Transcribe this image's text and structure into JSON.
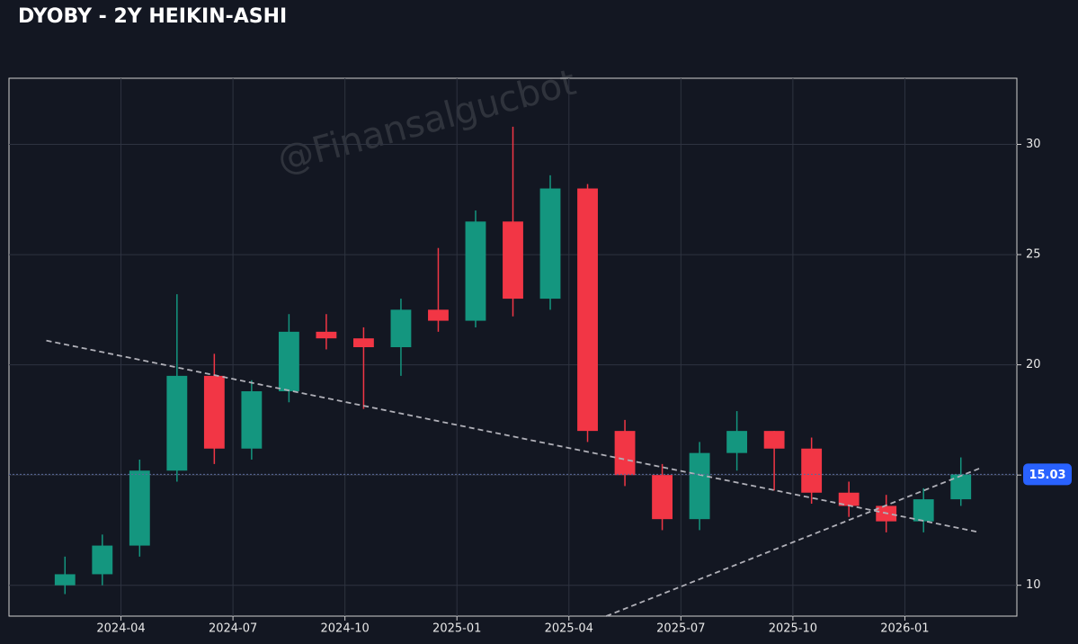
{
  "chart_data": {
    "type": "candlestick",
    "title": "DYOBY - 2Y HEIKIN-ASHI",
    "watermark": "@Finansalgucbot",
    "x": [
      "2024-02",
      "2024-03",
      "2024-04",
      "2024-05",
      "2024-06",
      "2024-07",
      "2024-08",
      "2024-09",
      "2024-10",
      "2024-11",
      "2024-12",
      "2025-01",
      "2025-02",
      "2025-03",
      "2025-04",
      "2025-05",
      "2025-06",
      "2025-07",
      "2025-08",
      "2025-09",
      "2025-10",
      "2025-11",
      "2025-12",
      "2026-01",
      "2026-02"
    ],
    "open": [
      10.0,
      10.5,
      11.8,
      15.2,
      19.5,
      16.2,
      18.8,
      21.5,
      21.2,
      20.8,
      22.5,
      22.0,
      26.5,
      23.0,
      28.0,
      17.0,
      15.0,
      13.0,
      16.0,
      17.0,
      16.2,
      14.2,
      13.6,
      12.9,
      13.9
    ],
    "high": [
      11.3,
      12.3,
      15.7,
      23.2,
      20.5,
      19.3,
      22.3,
      22.3,
      21.7,
      23.0,
      25.3,
      27.0,
      30.8,
      28.6,
      28.2,
      17.5,
      15.5,
      16.5,
      17.9,
      17.0,
      16.7,
      14.7,
      14.1,
      14.4,
      15.8
    ],
    "low": [
      9.6,
      10.0,
      11.3,
      14.7,
      15.5,
      15.7,
      18.3,
      20.7,
      18.0,
      19.5,
      21.5,
      21.7,
      22.2,
      22.5,
      16.5,
      14.5,
      12.5,
      12.5,
      15.2,
      14.3,
      13.7,
      13.1,
      12.4,
      12.4,
      13.6
    ],
    "close": [
      10.5,
      11.8,
      15.2,
      19.5,
      16.2,
      18.8,
      21.5,
      21.2,
      20.8,
      22.5,
      22.0,
      26.5,
      23.0,
      28.0,
      17.0,
      15.0,
      13.0,
      16.0,
      17.0,
      16.2,
      14.2,
      13.6,
      12.9,
      13.9,
      15.03
    ],
    "up_color": "#14967f",
    "down_color": "#f23645",
    "xlim": [
      "2024-01",
      "2026-04"
    ],
    "xticks": [
      {
        "value": "2024-04",
        "label": "2024-04"
      },
      {
        "value": "2024-07",
        "label": "2024-07"
      },
      {
        "value": "2024-10",
        "label": "2024-10"
      },
      {
        "value": "2025-01",
        "label": "2025-01"
      },
      {
        "value": "2025-04",
        "label": "2025-04"
      },
      {
        "value": "2025-07",
        "label": "2025-07"
      },
      {
        "value": "2025-10",
        "label": "2025-10"
      },
      {
        "value": "2026-01",
        "label": "2026-01"
      }
    ],
    "ylim": [
      8.6,
      33.0
    ],
    "yticks": [
      10,
      15,
      20,
      25,
      30
    ],
    "grid": true,
    "last_price": 15.03,
    "last_price_color": "#2962ff",
    "trendlines": [
      {
        "x": [
          "2024-02",
          "2026-03"
        ],
        "y": [
          21.1,
          12.4
        ]
      },
      {
        "x": [
          "2025-05",
          "2026-03"
        ],
        "y": [
          8.6,
          15.3
        ]
      }
    ]
  }
}
